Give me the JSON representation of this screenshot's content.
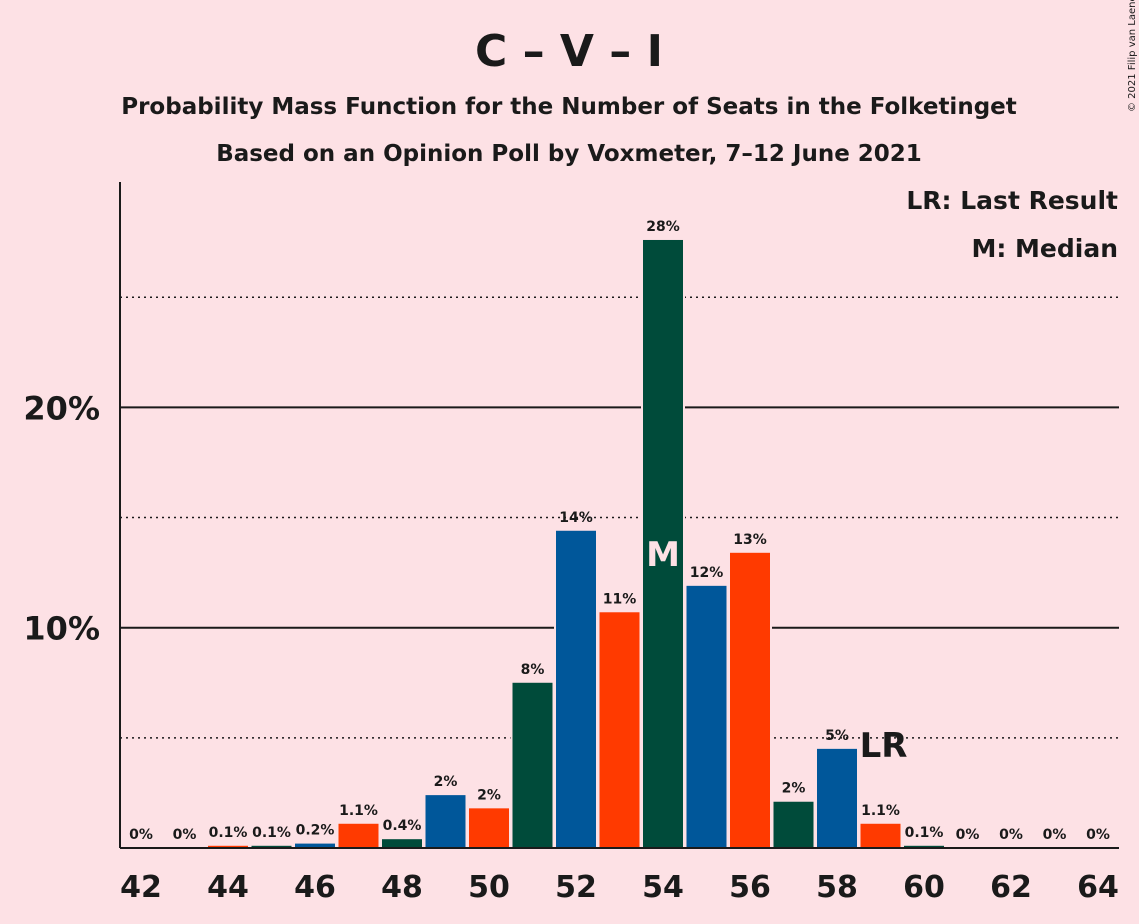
{
  "chart_data": {
    "type": "bar",
    "title": "C – V – I",
    "subtitle_1": "Probability Mass Function for the Number of Seats in the Folketinget",
    "subtitle_2": "Based on an Opinion Poll by Voxmeter, 7–12 June 2021",
    "copyright": "© 2021 Filip van Laenen",
    "legend": [
      "LR: Last Result",
      "M: Median"
    ],
    "x": [
      42,
      43,
      44,
      45,
      46,
      47,
      48,
      49,
      50,
      51,
      52,
      53,
      54,
      55,
      56,
      57,
      58,
      59,
      60,
      61,
      62,
      63,
      64
    ],
    "values": [
      0,
      0,
      0.1,
      0.1,
      0.2,
      1.1,
      0.4,
      2.4,
      1.8,
      7.5,
      14.4,
      10.7,
      27.6,
      11.9,
      13.4,
      2.1,
      4.5,
      1.1,
      0.1,
      0,
      0,
      0,
      0
    ],
    "labels": [
      "0%",
      "0%",
      "0.1%",
      "0.1%",
      "0.2%",
      "1.1%",
      "0.4%",
      "2%",
      "2%",
      "8%",
      "14%",
      "11%",
      "28%",
      "12%",
      "13%",
      "2%",
      "5%",
      "1.1%",
      "0.1%",
      "0%",
      "0%",
      "0%",
      "0%"
    ],
    "colors": [
      "#004B3A",
      "#00579A",
      "#FF3A00",
      "#004B3A",
      "#00579A",
      "#FF3A00",
      "#004B3A",
      "#00579A",
      "#FF3A00",
      "#004B3A",
      "#00579A",
      "#FF3A00",
      "#004B3A",
      "#00579A",
      "#FF3A00",
      "#004B3A",
      "#00579A",
      "#FF3A00",
      "#004B3A",
      "#00579A",
      "#FF3A00",
      "#004B3A",
      "#00579A"
    ],
    "xticks": [
      "42",
      "44",
      "46",
      "48",
      "50",
      "52",
      "54",
      "56",
      "58",
      "60",
      "62",
      "64"
    ],
    "yticks": [
      "10%",
      "20%"
    ],
    "ylim": [
      0,
      30
    ],
    "median": 54,
    "median_label": "M",
    "last_result": 59,
    "last_result_label": "LR",
    "grid": "solid at 10% and 20%, dotted at 5%, 15%, 25%"
  }
}
